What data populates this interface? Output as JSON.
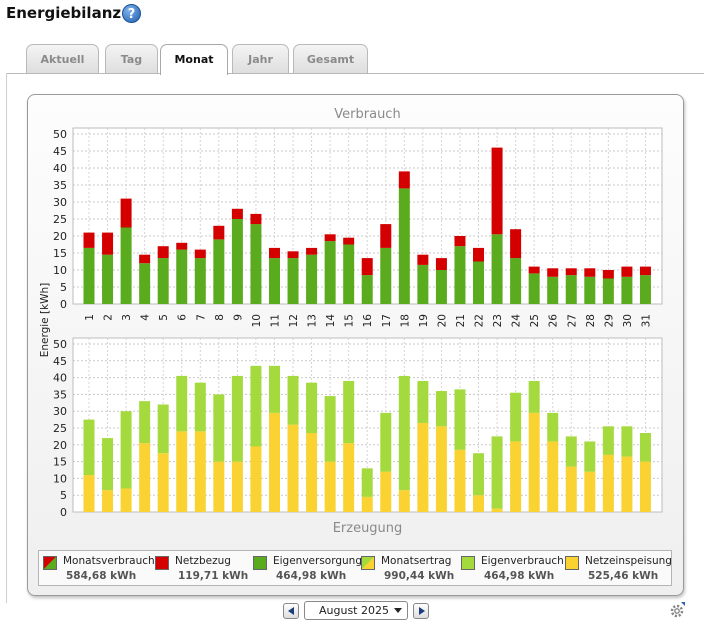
{
  "page": {
    "title": "Energiebilanz"
  },
  "tabs": [
    {
      "label": "Aktuell",
      "active": false
    },
    {
      "label": "Tag",
      "active": false
    },
    {
      "label": "Monat",
      "active": true
    },
    {
      "label": "Jahr",
      "active": false
    },
    {
      "label": "Gesamt",
      "active": false
    }
  ],
  "chart_data": [
    {
      "type": "bar",
      "stacked": true,
      "title": "Verbrauch",
      "xlabel": "",
      "ylabel": "Energie [kWh]",
      "ylim": [
        0,
        50
      ],
      "yticks": [
        0,
        5,
        10,
        15,
        20,
        25,
        30,
        35,
        40,
        45,
        50
      ],
      "grid": true,
      "categories": [
        "1",
        "2",
        "3",
        "4",
        "5",
        "6",
        "7",
        "8",
        "9",
        "10",
        "11",
        "12",
        "13",
        "14",
        "15",
        "16",
        "17",
        "18",
        "19",
        "20",
        "21",
        "22",
        "23",
        "24",
        "25",
        "26",
        "27",
        "28",
        "29",
        "30",
        "31"
      ],
      "series": [
        {
          "name": "Eigenversorgung",
          "color": "#5aab1e",
          "values": [
            16.5,
            14.5,
            22.5,
            12,
            13.5,
            16,
            13.5,
            19,
            25,
            23.5,
            13.5,
            13.5,
            14.5,
            18.5,
            17.5,
            8.5,
            16.5,
            34,
            11.5,
            10,
            17,
            12.5,
            20.5,
            13.5,
            9,
            8,
            8.5,
            8,
            7.5,
            8,
            8.5
          ]
        },
        {
          "name": "Netzbezug",
          "color": "#d40000",
          "values": [
            4.5,
            6.5,
            8.5,
            2.5,
            3.5,
            2,
            2.5,
            4,
            3,
            3,
            3,
            2,
            2,
            2,
            2,
            5,
            7,
            5,
            3,
            3.5,
            3,
            4,
            25.5,
            8.5,
            2,
            2.5,
            2,
            2.5,
            2.5,
            3,
            2.5
          ]
        }
      ]
    },
    {
      "type": "bar",
      "stacked": true,
      "title": "Erzeugung",
      "xlabel": "",
      "ylabel": "Energie [kWh]",
      "ylim": [
        0,
        50
      ],
      "yticks": [
        0,
        5,
        10,
        15,
        20,
        25,
        30,
        35,
        40,
        45,
        50
      ],
      "grid": true,
      "categories": [
        "1",
        "2",
        "3",
        "4",
        "5",
        "6",
        "7",
        "8",
        "9",
        "10",
        "11",
        "12",
        "13",
        "14",
        "15",
        "16",
        "17",
        "18",
        "19",
        "20",
        "21",
        "22",
        "23",
        "24",
        "25",
        "26",
        "27",
        "28",
        "29",
        "30",
        "31"
      ],
      "series": [
        {
          "name": "Netzeinspeisung",
          "color": "#fad232",
          "values": [
            11,
            6.5,
            7,
            20.5,
            17.5,
            24,
            24,
            15,
            15,
            19.5,
            29.5,
            26,
            23.5,
            15,
            20.5,
            4.5,
            12,
            6.5,
            26.5,
            25.5,
            18.5,
            5,
            1,
            21,
            29.5,
            21,
            13.5,
            12,
            17,
            16.5,
            15
          ]
        },
        {
          "name": "Eigenverbrauch",
          "color": "#a5da3f",
          "values": [
            16.5,
            15.5,
            23,
            12.5,
            14.5,
            16.5,
            14.5,
            20,
            25.5,
            24,
            14,
            14.5,
            15,
            19.5,
            18.5,
            8.5,
            17.5,
            34,
            12.5,
            10.5,
            18,
            12.5,
            21.5,
            14.5,
            9.5,
            8.5,
            9,
            9,
            8.5,
            9,
            8.5
          ]
        }
      ]
    }
  ],
  "legend": [
    {
      "name": "Monatsverbrauch",
      "value": "584,68 kWh",
      "colors": [
        "#d40000",
        "#5aab1e"
      ]
    },
    {
      "name": "Netzbezug",
      "value": "119,71 kWh",
      "colors": [
        "#d40000"
      ]
    },
    {
      "name": "Eigenversorgung",
      "value": "464,98 kWh",
      "colors": [
        "#5aab1e"
      ]
    },
    {
      "name": "Monatsertrag",
      "value": "990,44 kWh",
      "colors": [
        "#a5da3f",
        "#fad232"
      ]
    },
    {
      "name": "Eigenverbrauch",
      "value": "464,98 kWh",
      "colors": [
        "#a5da3f"
      ]
    },
    {
      "name": "Netzeinspeisung",
      "value": "525,46 kWh",
      "colors": [
        "#fad232"
      ]
    }
  ],
  "navigation": {
    "selected_month": "August 2025",
    "prev_icon": "arrow-left-icon",
    "next_icon": "arrow-right-icon",
    "settings_icon": "gear-icon"
  }
}
